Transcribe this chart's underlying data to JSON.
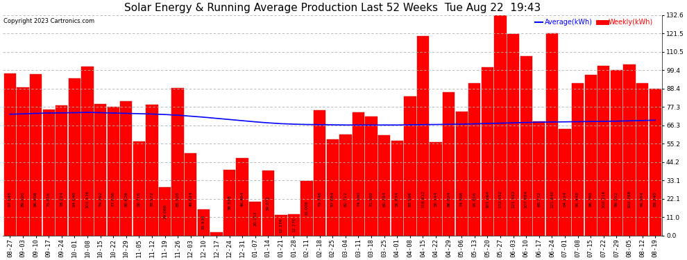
{
  "title": "Solar Energy & Running Average Production Last 52 Weeks  Tue Aug 22  19:43",
  "copyright": "Copyright 2023 Cartronics.com",
  "legend_avg": "Average(kWh)",
  "legend_weekly": "Weekly(kWh)",
  "yticks": [
    0.0,
    11.0,
    22.1,
    33.1,
    44.2,
    55.2,
    66.3,
    77.3,
    88.4,
    99.4,
    110.5,
    121.5,
    132.6
  ],
  "bar_color": "#ff0000",
  "bar_edgecolor": "#cc0000",
  "avg_line_color": "#0000ff",
  "bg_color": "#ffffff",
  "grid_color": "#b0b0b0",
  "labels": [
    "08-27",
    "09-03",
    "09-10",
    "09-17",
    "09-24",
    "10-01",
    "10-08",
    "10-15",
    "10-22",
    "10-29",
    "11-05",
    "11-12",
    "11-19",
    "11-26",
    "12-03",
    "12-10",
    "12-17",
    "12-24",
    "12-31",
    "01-07",
    "01-14",
    "01-21",
    "01-28",
    "02-11",
    "02-18",
    "02-25",
    "03-04",
    "03-11",
    "03-18",
    "03-25",
    "04-01",
    "04-08",
    "04-15",
    "04-22",
    "04-29",
    "05-06",
    "05-13",
    "05-20",
    "05-27",
    "06-03",
    "06-10",
    "06-17",
    "06-24",
    "07-01",
    "07-08",
    "07-15",
    "07-22",
    "07-29",
    "08-05",
    "08-12",
    "08-19"
  ],
  "bar_values": [
    97.648,
    89.02,
    96.908,
    75.616,
    78.224,
    94.64,
    101.536,
    79.292,
    77.636,
    80.628,
    56.716,
    78.572,
    29.088,
    88.528,
    49.624,
    15.936,
    1.928,
    39.528,
    46.464,
    20.152,
    39.072,
    12.276,
    12.776,
    33.008,
    75.348,
    57.684,
    60.712,
    74.1,
    71.5,
    60.284,
    56.834,
    83.596,
    119.832,
    56.344,
    86.024,
    74.568,
    91.816,
    101.064,
    132.552,
    121.392,
    107.884,
    68.772,
    121.84,
    64.224,
    91.448,
    96.76,
    102.216,
    99.552,
    102.768,
    91.584,
    88.24
  ],
  "avg_values": [
    73.0,
    73.2,
    73.5,
    73.7,
    73.8,
    73.9,
    74.1,
    73.9,
    73.7,
    73.5,
    73.3,
    73.1,
    72.8,
    72.4,
    71.8,
    71.2,
    70.5,
    69.8,
    69.1,
    68.4,
    67.8,
    67.3,
    67.0,
    66.8,
    66.7,
    66.6,
    66.5,
    66.5,
    66.5,
    66.5,
    66.5,
    66.6,
    66.7,
    66.8,
    66.9,
    67.0,
    67.2,
    67.4,
    67.6,
    67.8,
    68.0,
    68.2,
    68.3,
    68.4,
    68.5,
    68.6,
    68.7,
    68.8,
    69.0,
    69.2,
    69.4
  ],
  "ylim": [
    0.0,
    132.6
  ],
  "title_fontsize": 11,
  "tick_fontsize": 6.5,
  "label_fontsize": 4.5
}
